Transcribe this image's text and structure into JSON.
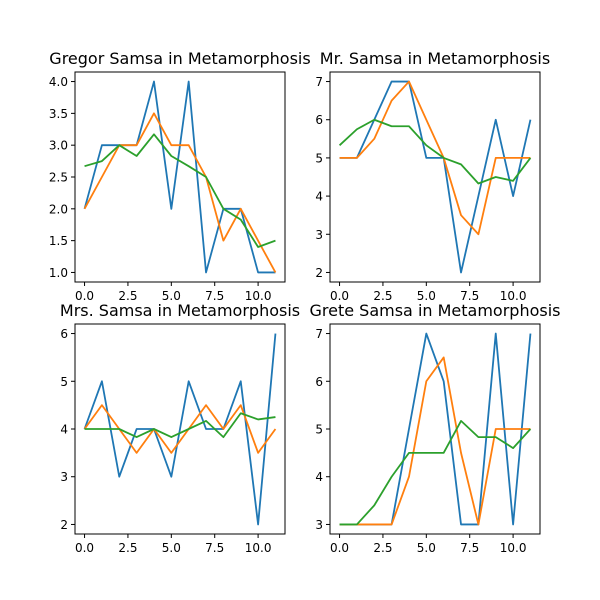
{
  "chart_data": [
    {
      "type": "line",
      "title": "Gregor Samsa in Metamorphosis",
      "xlabel": "",
      "ylabel": "",
      "xlim": [
        -0.55,
        11.55
      ],
      "ylim": [
        0.85,
        4.15
      ],
      "xticks": [
        0.0,
        2.5,
        5.0,
        7.5,
        10.0
      ],
      "xtick_labels": [
        "0.0",
        "2.5",
        "5.0",
        "7.5",
        "10.0"
      ],
      "yticks": [
        1.0,
        1.5,
        2.0,
        2.5,
        3.0,
        3.5,
        4.0
      ],
      "ytick_labels": [
        "1.0",
        "1.5",
        "2.0",
        "2.5",
        "3.0",
        "3.5",
        "4.0"
      ],
      "grid": false,
      "x": [
        0,
        1,
        2,
        3,
        4,
        5,
        6,
        7,
        8,
        9,
        10,
        11
      ],
      "series": [
        {
          "color": "#1f77b4",
          "values": [
            2,
            3,
            3,
            3,
            4,
            2,
            4,
            1,
            2,
            2,
            1,
            1
          ]
        },
        {
          "color": "#ff7f0e",
          "values": [
            2,
            2.5,
            3,
            3,
            3.5,
            3,
            3,
            2.5,
            1.5,
            2,
            1.5,
            1
          ]
        },
        {
          "color": "#2ca02c",
          "values": [
            2.67,
            2.75,
            3.0,
            2.83,
            3.17,
            2.83,
            2.67,
            2.5,
            2.0,
            1.83,
            1.4,
            1.5
          ]
        }
      ]
    },
    {
      "type": "line",
      "title": "Mr. Samsa in Metamorphosis",
      "xlabel": "",
      "ylabel": "",
      "xlim": [
        -0.55,
        11.55
      ],
      "ylim": [
        1.75,
        7.25
      ],
      "xticks": [
        0.0,
        2.5,
        5.0,
        7.5,
        10.0
      ],
      "xtick_labels": [
        "0.0",
        "2.5",
        "5.0",
        "7.5",
        "10.0"
      ],
      "yticks": [
        2,
        3,
        4,
        5,
        6,
        7
      ],
      "ytick_labels": [
        "2",
        "3",
        "4",
        "5",
        "6",
        "7"
      ],
      "grid": false,
      "x": [
        0,
        1,
        2,
        3,
        4,
        5,
        6,
        7,
        8,
        9,
        10,
        11
      ],
      "series": [
        {
          "color": "#1f77b4",
          "values": [
            5,
            5,
            6,
            7,
            7,
            5,
            5,
            2,
            4,
            6,
            4,
            6
          ]
        },
        {
          "color": "#ff7f0e",
          "values": [
            5,
            5,
            5.5,
            6.5,
            7,
            6,
            5,
            3.5,
            3,
            5,
            5,
            5
          ]
        },
        {
          "color": "#2ca02c",
          "values": [
            5.33,
            5.75,
            6.0,
            5.83,
            5.83,
            5.33,
            5.0,
            4.83,
            4.33,
            4.5,
            4.4,
            5.0
          ]
        }
      ]
    },
    {
      "type": "line",
      "title": "Mrs. Samsa in Metamorphosis",
      "xlabel": "",
      "ylabel": "",
      "xlim": [
        -0.55,
        11.55
      ],
      "ylim": [
        1.8,
        6.2
      ],
      "xticks": [
        0.0,
        2.5,
        5.0,
        7.5,
        10.0
      ],
      "xtick_labels": [
        "0.0",
        "2.5",
        "5.0",
        "7.5",
        "10.0"
      ],
      "yticks": [
        2,
        3,
        4,
        5,
        6
      ],
      "ytick_labels": [
        "2",
        "3",
        "4",
        "5",
        "6"
      ],
      "grid": false,
      "x": [
        0,
        1,
        2,
        3,
        4,
        5,
        6,
        7,
        8,
        9,
        10,
        11
      ],
      "series": [
        {
          "color": "#1f77b4",
          "values": [
            4,
            5,
            3,
            4,
            4,
            3,
            5,
            4,
            4,
            5,
            2,
            6
          ]
        },
        {
          "color": "#ff7f0e",
          "values": [
            4,
            4.5,
            4,
            3.5,
            4,
            3.5,
            4,
            4.5,
            4,
            4.5,
            3.5,
            4
          ]
        },
        {
          "color": "#2ca02c",
          "values": [
            4.0,
            4.0,
            4.0,
            3.83,
            4.0,
            3.83,
            4.0,
            4.17,
            3.83,
            4.33,
            4.2,
            4.25
          ]
        }
      ]
    },
    {
      "type": "line",
      "title": "Grete Samsa in Metamorphosis",
      "xlabel": "",
      "ylabel": "",
      "xlim": [
        -0.55,
        11.55
      ],
      "ylim": [
        2.8,
        7.2
      ],
      "xticks": [
        0.0,
        2.5,
        5.0,
        7.5,
        10.0
      ],
      "xtick_labels": [
        "0.0",
        "2.5",
        "5.0",
        "7.5",
        "10.0"
      ],
      "yticks": [
        3,
        4,
        5,
        6,
        7
      ],
      "ytick_labels": [
        "3",
        "4",
        "5",
        "6",
        "7"
      ],
      "grid": false,
      "x": [
        0,
        1,
        2,
        3,
        4,
        5,
        6,
        7,
        8,
        9,
        10,
        11
      ],
      "series": [
        {
          "color": "#1f77b4",
          "values": [
            3,
            3,
            3,
            3,
            5,
            7,
            6,
            3,
            3,
            7,
            3,
            7
          ]
        },
        {
          "color": "#ff7f0e",
          "values": [
            3,
            3,
            3,
            3,
            4,
            6,
            6.5,
            4.5,
            3,
            5,
            5,
            5
          ]
        },
        {
          "color": "#2ca02c",
          "values": [
            3.0,
            3.0,
            3.4,
            4.0,
            4.5,
            4.5,
            4.5,
            5.17,
            4.83,
            4.83,
            4.6,
            5.0
          ]
        }
      ]
    }
  ]
}
